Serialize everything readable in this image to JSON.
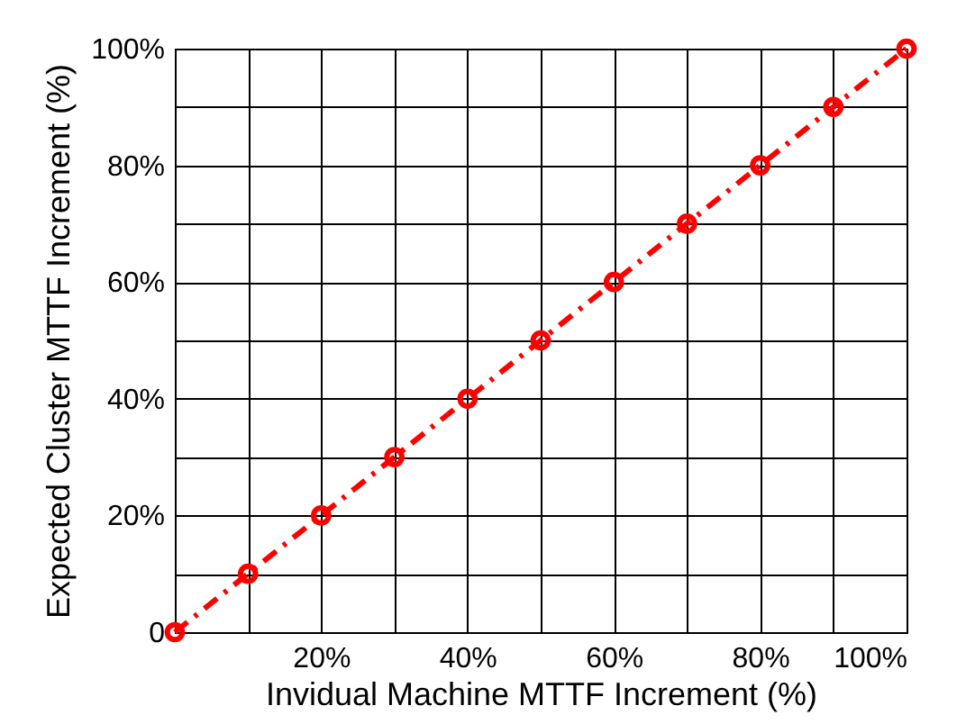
{
  "chart_data": {
    "type": "line",
    "xlabel": "Invidual Machine MTTF Increment (%)",
    "ylabel": "Expected Cluster MTTF Increment (%)",
    "x": [
      0,
      10,
      20,
      30,
      40,
      50,
      60,
      70,
      80,
      90,
      100
    ],
    "series": [
      {
        "color": "#ff0000",
        "values": [
          0,
          10,
          20,
          30,
          40,
          50,
          60,
          70,
          80,
          90,
          100
        ]
      }
    ],
    "xlim": [
      0,
      100
    ],
    "ylim": [
      0,
      100
    ],
    "xticks": [
      {
        "value": 0,
        "label": null
      },
      {
        "value": 10,
        "label": null
      },
      {
        "value": 20,
        "label": "20%"
      },
      {
        "value": 30,
        "label": null
      },
      {
        "value": 40,
        "label": "40%"
      },
      {
        "value": 50,
        "label": null
      },
      {
        "value": 60,
        "label": "60%"
      },
      {
        "value": 70,
        "label": null
      },
      {
        "value": 80,
        "label": "80%"
      },
      {
        "value": 90,
        "label": null
      },
      {
        "value": 100,
        "label": "100%"
      }
    ],
    "yticks": [
      {
        "value": 0,
        "label": "0"
      },
      {
        "value": 10,
        "label": null
      },
      {
        "value": 20,
        "label": "20%"
      },
      {
        "value": 30,
        "label": null
      },
      {
        "value": 40,
        "label": "40%"
      },
      {
        "value": 50,
        "label": null
      },
      {
        "value": 60,
        "label": "60%"
      },
      {
        "value": 70,
        "label": null
      },
      {
        "value": 80,
        "label": "80%"
      },
      {
        "value": 90,
        "label": null
      },
      {
        "value": 100,
        "label": "100%"
      }
    ],
    "grid": true,
    "marker": "circle",
    "line_style": "dashed",
    "legend": false
  }
}
